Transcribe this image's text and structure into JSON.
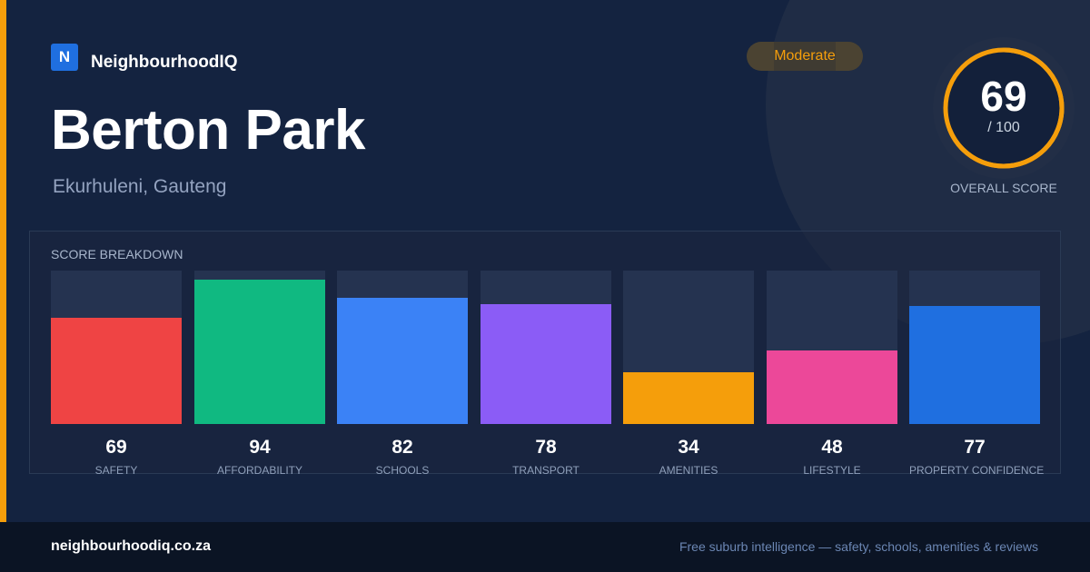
{
  "brand": {
    "logo_letter": "N",
    "name": "NeighbourhoodIQ"
  },
  "suburb": {
    "name": "Berton Park",
    "location": "Ekurhuleni, Gauteng"
  },
  "badge": {
    "label": "Moderate",
    "color": "#f59e0b"
  },
  "overall": {
    "score": "69",
    "max_label": "/ 100",
    "fraction": 0.69,
    "label": "OVERALL SCORE",
    "ring_color": "#f59e0b"
  },
  "breakdown": {
    "title": "SCORE BREAKDOWN"
  },
  "chart_data": {
    "type": "bar",
    "title": "SCORE BREAKDOWN",
    "ylim": [
      0,
      100
    ],
    "categories": [
      "SAFETY",
      "AFFORDABILITY",
      "SCHOOLS",
      "TRANSPORT",
      "AMENITIES",
      "LIFESTYLE",
      "PROPERTY CONFIDENCE"
    ],
    "values": [
      69,
      94,
      82,
      78,
      34,
      48,
      77
    ],
    "colors": [
      "#ef4444",
      "#10b981",
      "#3b82f6",
      "#8b5cf6",
      "#f59e0b",
      "#ec4899",
      "#1f6fe0"
    ],
    "grid": false
  },
  "footer": {
    "url": "neighbourhoodiq.co.za",
    "tagline": "Free suburb intelligence — safety, schools, amenities & reviews"
  }
}
